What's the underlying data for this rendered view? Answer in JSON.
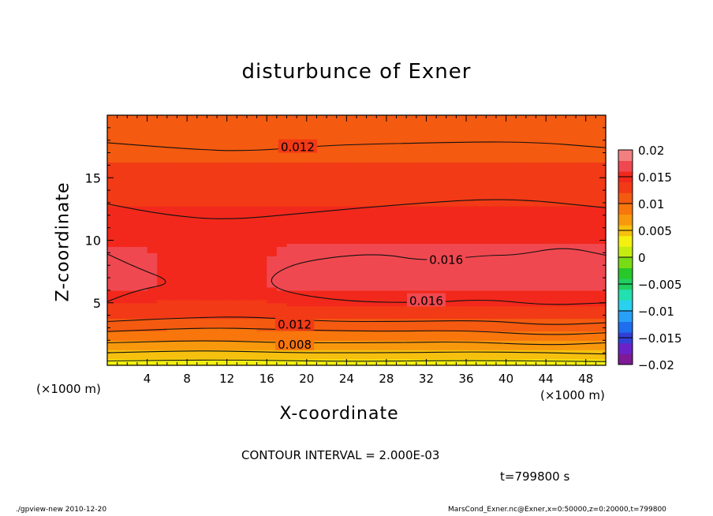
{
  "chart_data": {
    "type": "heatmap",
    "title": "disturbunce of Exner",
    "xlabel": "X-coordinate",
    "ylabel": "Z-coordinate",
    "x_unit": "(×1000 m)",
    "xlim": [
      0,
      50
    ],
    "ylim": [
      0,
      20
    ],
    "x_ticks": [
      4,
      8,
      12,
      16,
      20,
      24,
      28,
      32,
      36,
      40,
      44,
      48
    ],
    "y_ticks": [
      5,
      10,
      15
    ],
    "contour_interval_text": "CONTOUR INTERVAL = 2.000E-03",
    "time_text": "t=799800 s",
    "colorbar": {
      "range": [
        -0.02,
        0.02
      ],
      "tick_labels": [
        "0.02",
        "0.015",
        "0.01",
        "0.005",
        "0",
        "−0.005",
        "−0.01",
        "−0.015",
        "−0.02"
      ],
      "tick_values": [
        0.02,
        0.015,
        0.01,
        0.005,
        0,
        -0.005,
        -0.01,
        -0.015,
        -0.02
      ],
      "colors": [
        "#7e1a96",
        "#6a22c8",
        "#3240d8",
        "#1e6eee",
        "#28a0f8",
        "#2ad0f0",
        "#22e0b0",
        "#20d060",
        "#28c828",
        "#78dc14",
        "#c4ec10",
        "#f4f010",
        "#f6c00e",
        "#f8980c",
        "#f8760c",
        "#f45a10",
        "#f23a16",
        "#f2281c",
        "#f04850",
        "#f28080"
      ]
    },
    "contour_labels": [
      {
        "text": "0.012",
        "value": 0.012,
        "x": 19.1,
        "z": 17.5
      },
      {
        "text": "0.016",
        "value": 0.016,
        "x": 34.0,
        "z": 8.5
      },
      {
        "text": "0.016",
        "value": 0.016,
        "x": 32.0,
        "z": 5.2
      },
      {
        "text": "0.012",
        "value": 0.012,
        "x": 18.8,
        "z": 3.3
      },
      {
        "text": "0.008",
        "value": 0.008,
        "x": 18.8,
        "z": 1.7
      }
    ]
  },
  "footer": {
    "left": "./gpview-new   2010-12-20",
    "right": "MarsCond_Exner.nc@Exner,x=0:50000,z=0:20000,t=799800"
  }
}
